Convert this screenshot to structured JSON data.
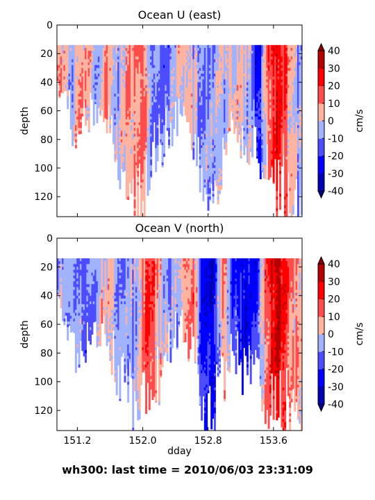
{
  "figure_title": "wh300: last time = 2010/06/03 23:31:09",
  "chart_data": [
    {
      "type": "heatmap",
      "title": "Ocean U (east)",
      "xlabel": "",
      "ylabel": "depth",
      "xlim": [
        150.95,
        153.95
      ],
      "ylim": [
        134,
        0
      ],
      "y_ticks": [
        0,
        20,
        40,
        60,
        80,
        100,
        120
      ],
      "x_ticks": [
        151.2,
        152.0,
        152.8,
        153.6
      ],
      "x_tick_labels_visible": false,
      "colorbar": {
        "label": "cm/s",
        "levels": [
          -40,
          -30,
          -20,
          -10,
          0,
          10,
          20,
          30,
          40
        ],
        "colors": [
          "#0000b4",
          "#0000ff",
          "#4d4dff",
          "#a1b3ff",
          "#ffb3a1",
          "#ff4d4d",
          "#ff0000",
          "#b40000"
        ],
        "extend": "both"
      },
      "data_top_depth": 14,
      "seed": 7,
      "day_max_depth": [
        [
          151.0,
          45
        ],
        [
          151.1,
          60
        ],
        [
          151.2,
          85
        ],
        [
          151.3,
          65
        ],
        [
          151.45,
          55
        ],
        [
          151.6,
          70
        ],
        [
          151.75,
          110
        ],
        [
          151.85,
          95
        ],
        [
          151.95,
          132
        ],
        [
          152.1,
          90
        ],
        [
          152.2,
          85
        ],
        [
          152.35,
          70
        ],
        [
          152.5,
          60
        ],
        [
          152.65,
          80
        ],
        [
          152.8,
          130
        ],
        [
          152.95,
          100
        ],
        [
          153.1,
          75
        ],
        [
          153.25,
          95
        ],
        [
          153.4,
          90
        ],
        [
          153.55,
          110
        ],
        [
          153.7,
          118
        ],
        [
          153.85,
          125
        ]
      ],
      "velocity_anchors": [
        [
          151.0,
          5
        ],
        [
          151.1,
          -6
        ],
        [
          151.25,
          12
        ],
        [
          151.4,
          -4
        ],
        [
          151.55,
          8
        ],
        [
          151.7,
          -5
        ],
        [
          151.85,
          10
        ],
        [
          152.0,
          14
        ],
        [
          152.1,
          -8
        ],
        [
          152.25,
          -14
        ],
        [
          152.4,
          -3
        ],
        [
          152.55,
          6
        ],
        [
          152.7,
          -12
        ],
        [
          152.85,
          -9
        ],
        [
          153.0,
          -3
        ],
        [
          153.15,
          5
        ],
        [
          153.3,
          -6
        ],
        [
          153.42,
          -28
        ],
        [
          153.55,
          18
        ],
        [
          153.65,
          30
        ],
        [
          153.75,
          15
        ],
        [
          153.9,
          -8
        ]
      ]
    },
    {
      "type": "heatmap",
      "title": "Ocean V (north)",
      "xlabel": "dday",
      "ylabel": "depth",
      "xlim": [
        150.95,
        153.95
      ],
      "ylim": [
        134,
        0
      ],
      "y_ticks": [
        0,
        20,
        40,
        60,
        80,
        100,
        120
      ],
      "x_ticks": [
        151.2,
        152.0,
        152.8,
        153.6
      ],
      "x_tick_labels_visible": true,
      "colorbar": {
        "label": "cm/s",
        "levels": [
          -40,
          -30,
          -20,
          -10,
          0,
          10,
          20,
          30,
          40
        ],
        "colors": [
          "#0000b4",
          "#0000ff",
          "#4d4dff",
          "#a1b3ff",
          "#ffb3a1",
          "#ff4d4d",
          "#ff0000",
          "#b40000"
        ],
        "extend": "both"
      },
      "data_top_depth": 14,
      "seed": 19,
      "day_max_depth": [
        [
          151.0,
          45
        ],
        [
          151.1,
          65
        ],
        [
          151.2,
          90
        ],
        [
          151.3,
          75
        ],
        [
          151.45,
          60
        ],
        [
          151.6,
          80
        ],
        [
          151.75,
          100
        ],
        [
          151.85,
          110
        ],
        [
          151.95,
          134
        ],
        [
          152.1,
          95
        ],
        [
          152.2,
          100
        ],
        [
          152.35,
          70
        ],
        [
          152.5,
          60
        ],
        [
          152.65,
          85
        ],
        [
          152.8,
          132
        ],
        [
          152.95,
          105
        ],
        [
          153.1,
          80
        ],
        [
          153.25,
          95
        ],
        [
          153.4,
          100
        ],
        [
          153.55,
          110
        ],
        [
          153.7,
          115
        ],
        [
          153.85,
          122
        ]
      ],
      "velocity_anchors": [
        [
          151.0,
          -6
        ],
        [
          151.1,
          -12
        ],
        [
          151.2,
          -8
        ],
        [
          151.35,
          -14
        ],
        [
          151.5,
          6
        ],
        [
          151.65,
          -5
        ],
        [
          151.8,
          -10
        ],
        [
          151.9,
          -8
        ],
        [
          152.05,
          22
        ],
        [
          152.15,
          14
        ],
        [
          152.3,
          -10
        ],
        [
          152.45,
          -6
        ],
        [
          152.6,
          18
        ],
        [
          152.72,
          -20
        ],
        [
          152.85,
          -30
        ],
        [
          153.0,
          14
        ],
        [
          153.1,
          -18
        ],
        [
          153.25,
          -32
        ],
        [
          153.4,
          -24
        ],
        [
          153.55,
          28
        ],
        [
          153.65,
          36
        ],
        [
          153.8,
          10
        ]
      ]
    }
  ]
}
